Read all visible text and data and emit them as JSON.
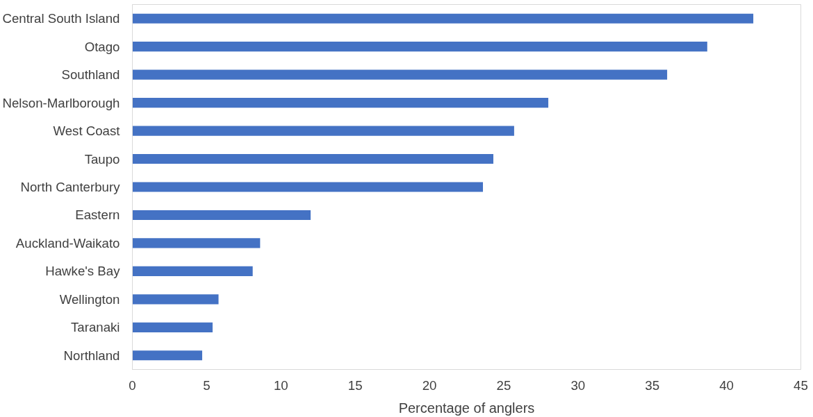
{
  "chart_data": {
    "type": "bar",
    "orientation": "horizontal",
    "xlabel": "Percentage of anglers",
    "categories": [
      "Central South Island",
      "Otago",
      "Southland",
      "Nelson-Marlborough",
      "West Coast",
      "Taupo",
      "North Canterbury",
      "Eastern",
      "Auckland-Waikato",
      "Hawke's Bay",
      "Wellington",
      "Taranaki",
      "Northland"
    ],
    "values": [
      41.8,
      38.7,
      36.0,
      28.0,
      25.7,
      24.3,
      23.6,
      12.0,
      8.6,
      8.1,
      5.8,
      5.4,
      4.7
    ],
    "color": "#4472c4",
    "xlim": [
      0,
      45
    ],
    "xticks": [
      0,
      5,
      10,
      15,
      20,
      25,
      30,
      35,
      40,
      45
    ],
    "grid": false
  }
}
